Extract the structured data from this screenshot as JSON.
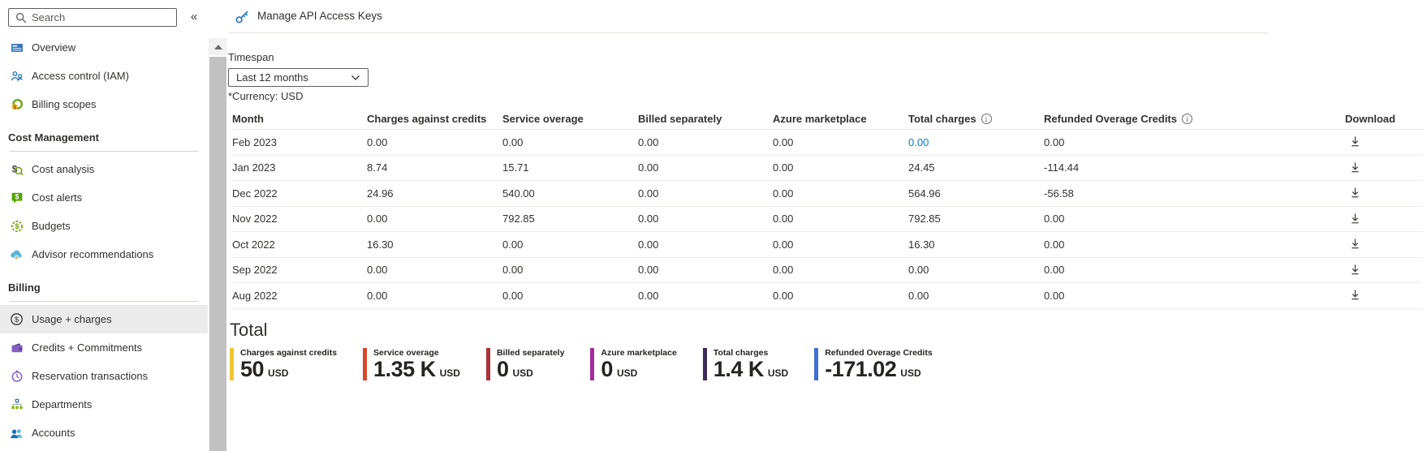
{
  "sidebar": {
    "search_placeholder": "Search",
    "collapse_glyph": "«",
    "sections": [
      {
        "header": null,
        "items": [
          {
            "label": "Overview",
            "icon": "overview-icon",
            "selected": false
          },
          {
            "label": "Access control (IAM)",
            "icon": "access-control-icon",
            "selected": false
          },
          {
            "label": "Billing scopes",
            "icon": "billing-scopes-icon",
            "selected": false
          }
        ]
      },
      {
        "header": "Cost Management",
        "items": [
          {
            "label": "Cost analysis",
            "icon": "cost-analysis-icon",
            "selected": false
          },
          {
            "label": "Cost alerts",
            "icon": "cost-alerts-icon",
            "selected": false
          },
          {
            "label": "Budgets",
            "icon": "budgets-icon",
            "selected": false
          },
          {
            "label": "Advisor recommendations",
            "icon": "advisor-recommendations-icon",
            "selected": false
          }
        ]
      },
      {
        "header": "Billing",
        "items": [
          {
            "label": "Usage + charges",
            "icon": "usage-charges-icon",
            "selected": true
          },
          {
            "label": "Credits + Commitments",
            "icon": "credits-commitments-icon",
            "selected": false
          },
          {
            "label": "Reservation transactions",
            "icon": "reservation-transactions-icon",
            "selected": false
          },
          {
            "label": "Departments",
            "icon": "departments-icon",
            "selected": false
          },
          {
            "label": "Accounts",
            "icon": "accounts-icon",
            "selected": false
          }
        ]
      }
    ]
  },
  "toolbar": {
    "title": "Manage API Access Keys"
  },
  "filters": {
    "timespan_label": "Timespan",
    "timespan_value": "Last 12 months",
    "currency_note": "*Currency: USD"
  },
  "table": {
    "columns": [
      {
        "label": "Month"
      },
      {
        "label": "Charges against credits"
      },
      {
        "label": "Service overage"
      },
      {
        "label": "Billed separately"
      },
      {
        "label": "Azure marketplace"
      },
      {
        "label": "Total charges",
        "info": true
      },
      {
        "label": "Refunded Overage Credits",
        "info": true
      },
      {
        "label": "Download"
      }
    ],
    "rows": [
      {
        "month": "Feb 2023",
        "charges_against_credits": "0.00",
        "service_overage": "0.00",
        "billed_separately": "0.00",
        "azure_marketplace": "0.00",
        "total_charges": "0.00",
        "total_charges_link": true,
        "refunded_overage_credits": "0.00"
      },
      {
        "month": "Jan 2023",
        "charges_against_credits": "8.74",
        "service_overage": "15.71",
        "billed_separately": "0.00",
        "azure_marketplace": "0.00",
        "total_charges": "24.45",
        "total_charges_link": false,
        "refunded_overage_credits": "-114.44"
      },
      {
        "month": "Dec 2022",
        "charges_against_credits": "24.96",
        "service_overage": "540.00",
        "billed_separately": "0.00",
        "azure_marketplace": "0.00",
        "total_charges": "564.96",
        "total_charges_link": false,
        "refunded_overage_credits": "-56.58"
      },
      {
        "month": "Nov 2022",
        "charges_against_credits": "0.00",
        "service_overage": "792.85",
        "billed_separately": "0.00",
        "azure_marketplace": "0.00",
        "total_charges": "792.85",
        "total_charges_link": false,
        "refunded_overage_credits": "0.00"
      },
      {
        "month": "Oct 2022",
        "charges_against_credits": "16.30",
        "service_overage": "0.00",
        "billed_separately": "0.00",
        "azure_marketplace": "0.00",
        "total_charges": "16.30",
        "total_charges_link": false,
        "refunded_overage_credits": "0.00"
      },
      {
        "month": "Sep 2022",
        "charges_against_credits": "0.00",
        "service_overage": "0.00",
        "billed_separately": "0.00",
        "azure_marketplace": "0.00",
        "total_charges": "0.00",
        "total_charges_link": false,
        "refunded_overage_credits": "0.00"
      },
      {
        "month": "Aug 2022",
        "charges_against_credits": "0.00",
        "service_overage": "0.00",
        "billed_separately": "0.00",
        "azure_marketplace": "0.00",
        "total_charges": "0.00",
        "total_charges_link": false,
        "refunded_overage_credits": "0.00"
      }
    ]
  },
  "totals": {
    "heading": "Total",
    "cards": [
      {
        "label": "Charges against credits",
        "value": "50",
        "unit": "USD",
        "color": "#eec733"
      },
      {
        "label": "Service overage",
        "value": "1.35 K",
        "unit": "USD",
        "color": "#d6492b"
      },
      {
        "label": "Billed separately",
        "value": "0",
        "unit": "USD",
        "color": "#aa3238"
      },
      {
        "label": "Azure marketplace",
        "value": "0",
        "unit": "USD",
        "color": "#a32d9c"
      },
      {
        "label": "Total charges",
        "value": "1.4 K",
        "unit": "USD",
        "color": "#3e2c5c"
      },
      {
        "label": "Refunded Overage Credits",
        "value": "-171.02",
        "unit": "USD",
        "color": "#416fd6"
      }
    ]
  },
  "colors": {
    "link_blue": "#0078d4",
    "selected_item_bg": "#ebebeb"
  }
}
